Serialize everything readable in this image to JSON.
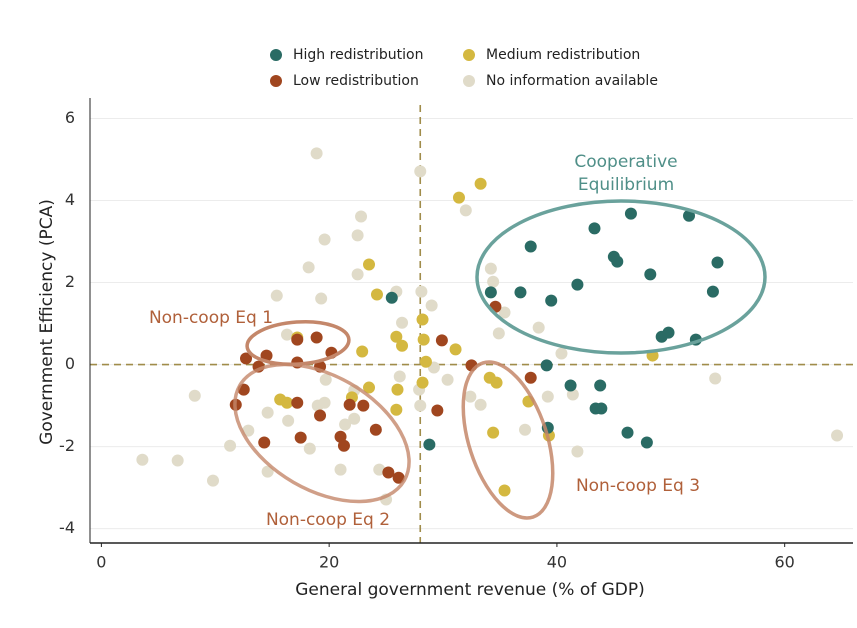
{
  "chart_data": {
    "type": "scatter",
    "x_label": "General government revenue (% of GDP)",
    "y_label": "Government Efficiency (PCA)",
    "xlim": [
      -1,
      66
    ],
    "ylim": [
      -4.35,
      6.5
    ],
    "xticks": [
      0,
      20,
      40,
      60
    ],
    "yticks": [
      -4,
      -2,
      0,
      2,
      4,
      6
    ],
    "grid": true,
    "reference_lines": {
      "x": 28,
      "y": 0,
      "color": "#a08c4a"
    },
    "annotations": [
      {
        "lines": [
          "Cooperative",
          "Equilibrium"
        ],
        "color": "#4f8f88"
      },
      {
        "lines": [
          "Non-coop Eq 1"
        ],
        "color": "#b0603a"
      },
      {
        "lines": [
          "Non-coop Eq 2"
        ],
        "color": "#b0603a"
      },
      {
        "lines": [
          "Non-coop Eq 3"
        ],
        "color": "#b0603a"
      }
    ],
    "series": [
      {
        "name": "High redistribution",
        "color": "#2a6b64",
        "x": [
          25.5,
          28.8,
          34.2,
          36.8,
          37.7,
          39.5,
          41.8,
          43.3,
          45.0,
          45.3,
          46.5,
          48.2,
          49.2,
          49.8,
          51.6,
          52.2,
          53.7,
          54.1,
          39.1,
          39.2,
          41.2,
          43.8,
          43.4,
          43.9,
          46.2,
          47.9
        ],
        "values": [
          1.63,
          -1.95,
          1.76,
          1.76,
          2.88,
          1.56,
          1.95,
          3.32,
          2.63,
          2.51,
          3.68,
          2.2,
          0.68,
          0.78,
          3.63,
          0.61,
          1.78,
          2.49,
          -0.02,
          -1.54,
          -0.51,
          -0.51,
          -1.07,
          -1.07,
          -1.66,
          -1.9
        ]
      },
      {
        "name": "Low redistribution",
        "color": "#a0461f",
        "x": [
          12.7,
          13.8,
          14.5,
          17.2,
          18.9,
          20.2,
          12.5,
          11.8,
          17.2,
          19.2,
          17.2,
          19.2,
          21.8,
          23.0,
          17.5,
          14.3,
          21.0,
          21.3,
          24.1,
          25.2,
          26.1,
          29.9,
          32.5,
          29.5,
          37.7,
          34.6
        ],
        "values": [
          0.15,
          -0.05,
          0.22,
          0.61,
          0.66,
          0.29,
          -0.61,
          -0.98,
          0.05,
          -0.05,
          -0.93,
          -1.24,
          -0.98,
          -1.0,
          -1.78,
          -1.9,
          -1.76,
          -1.98,
          -1.59,
          -2.63,
          -2.76,
          0.59,
          -0.02,
          -1.12,
          -0.32,
          1.41
        ]
      },
      {
        "name": "Medium redistribution",
        "color": "#d4b840",
        "x": [
          31.4,
          33.3,
          23.5,
          24.2,
          25.9,
          26.4,
          28.2,
          28.3,
          31.1,
          28.5,
          22.9,
          17.2,
          15.7,
          16.3,
          22.0,
          23.5,
          26.0,
          25.9,
          28.2,
          34.1,
          34.7,
          37.5,
          34.4,
          39.3,
          35.4,
          48.4
        ],
        "values": [
          4.07,
          4.41,
          2.44,
          1.71,
          0.68,
          0.46,
          1.1,
          0.61,
          0.37,
          0.07,
          0.32,
          0.66,
          -0.85,
          -0.93,
          -0.8,
          -0.56,
          -0.61,
          -1.1,
          -0.44,
          -0.32,
          -0.44,
          -0.9,
          -1.66,
          -1.73,
          -3.07,
          0.22
        ]
      },
      {
        "name": "No information available",
        "color": "#e0dbc9",
        "x": [
          18.9,
          28.0,
          32.0,
          22.8,
          22.5,
          19.6,
          18.2,
          15.4,
          19.3,
          22.5,
          25.9,
          28.1,
          29.0,
          34.2,
          34.4,
          34.9,
          35.4,
          38.4,
          40.4,
          53.9,
          64.6,
          3.6,
          6.7,
          8.2,
          9.8,
          11.3,
          12.9,
          14.6,
          14.6,
          16.3,
          21.0,
          19.0,
          19.7,
          18.3,
          22.2,
          24.4,
          25.0,
          27.9,
          29.2,
          28.0,
          30.4,
          32.4,
          33.3,
          39.2,
          41.4,
          41.8,
          37.2,
          26.4,
          26.2,
          22.2,
          21.4,
          16.4,
          19.6
        ],
        "values": [
          5.15,
          4.71,
          3.76,
          3.61,
          3.15,
          3.05,
          2.37,
          1.68,
          1.61,
          2.2,
          1.78,
          1.78,
          1.44,
          2.34,
          2.02,
          0.76,
          1.27,
          0.9,
          0.27,
          -0.34,
          -1.73,
          -2.32,
          -2.34,
          -0.76,
          -2.83,
          -1.98,
          -1.61,
          -2.61,
          -1.17,
          0.73,
          -2.56,
          -1.0,
          -0.37,
          -2.05,
          -1.32,
          -2.56,
          -3.29,
          -0.61,
          -0.07,
          -1.0,
          -0.37,
          -0.78,
          -0.98,
          -0.78,
          -0.73,
          -2.12,
          -1.59,
          1.02,
          -0.29,
          -0.63,
          -1.46,
          -1.37,
          -0.93
        ]
      }
    ]
  }
}
